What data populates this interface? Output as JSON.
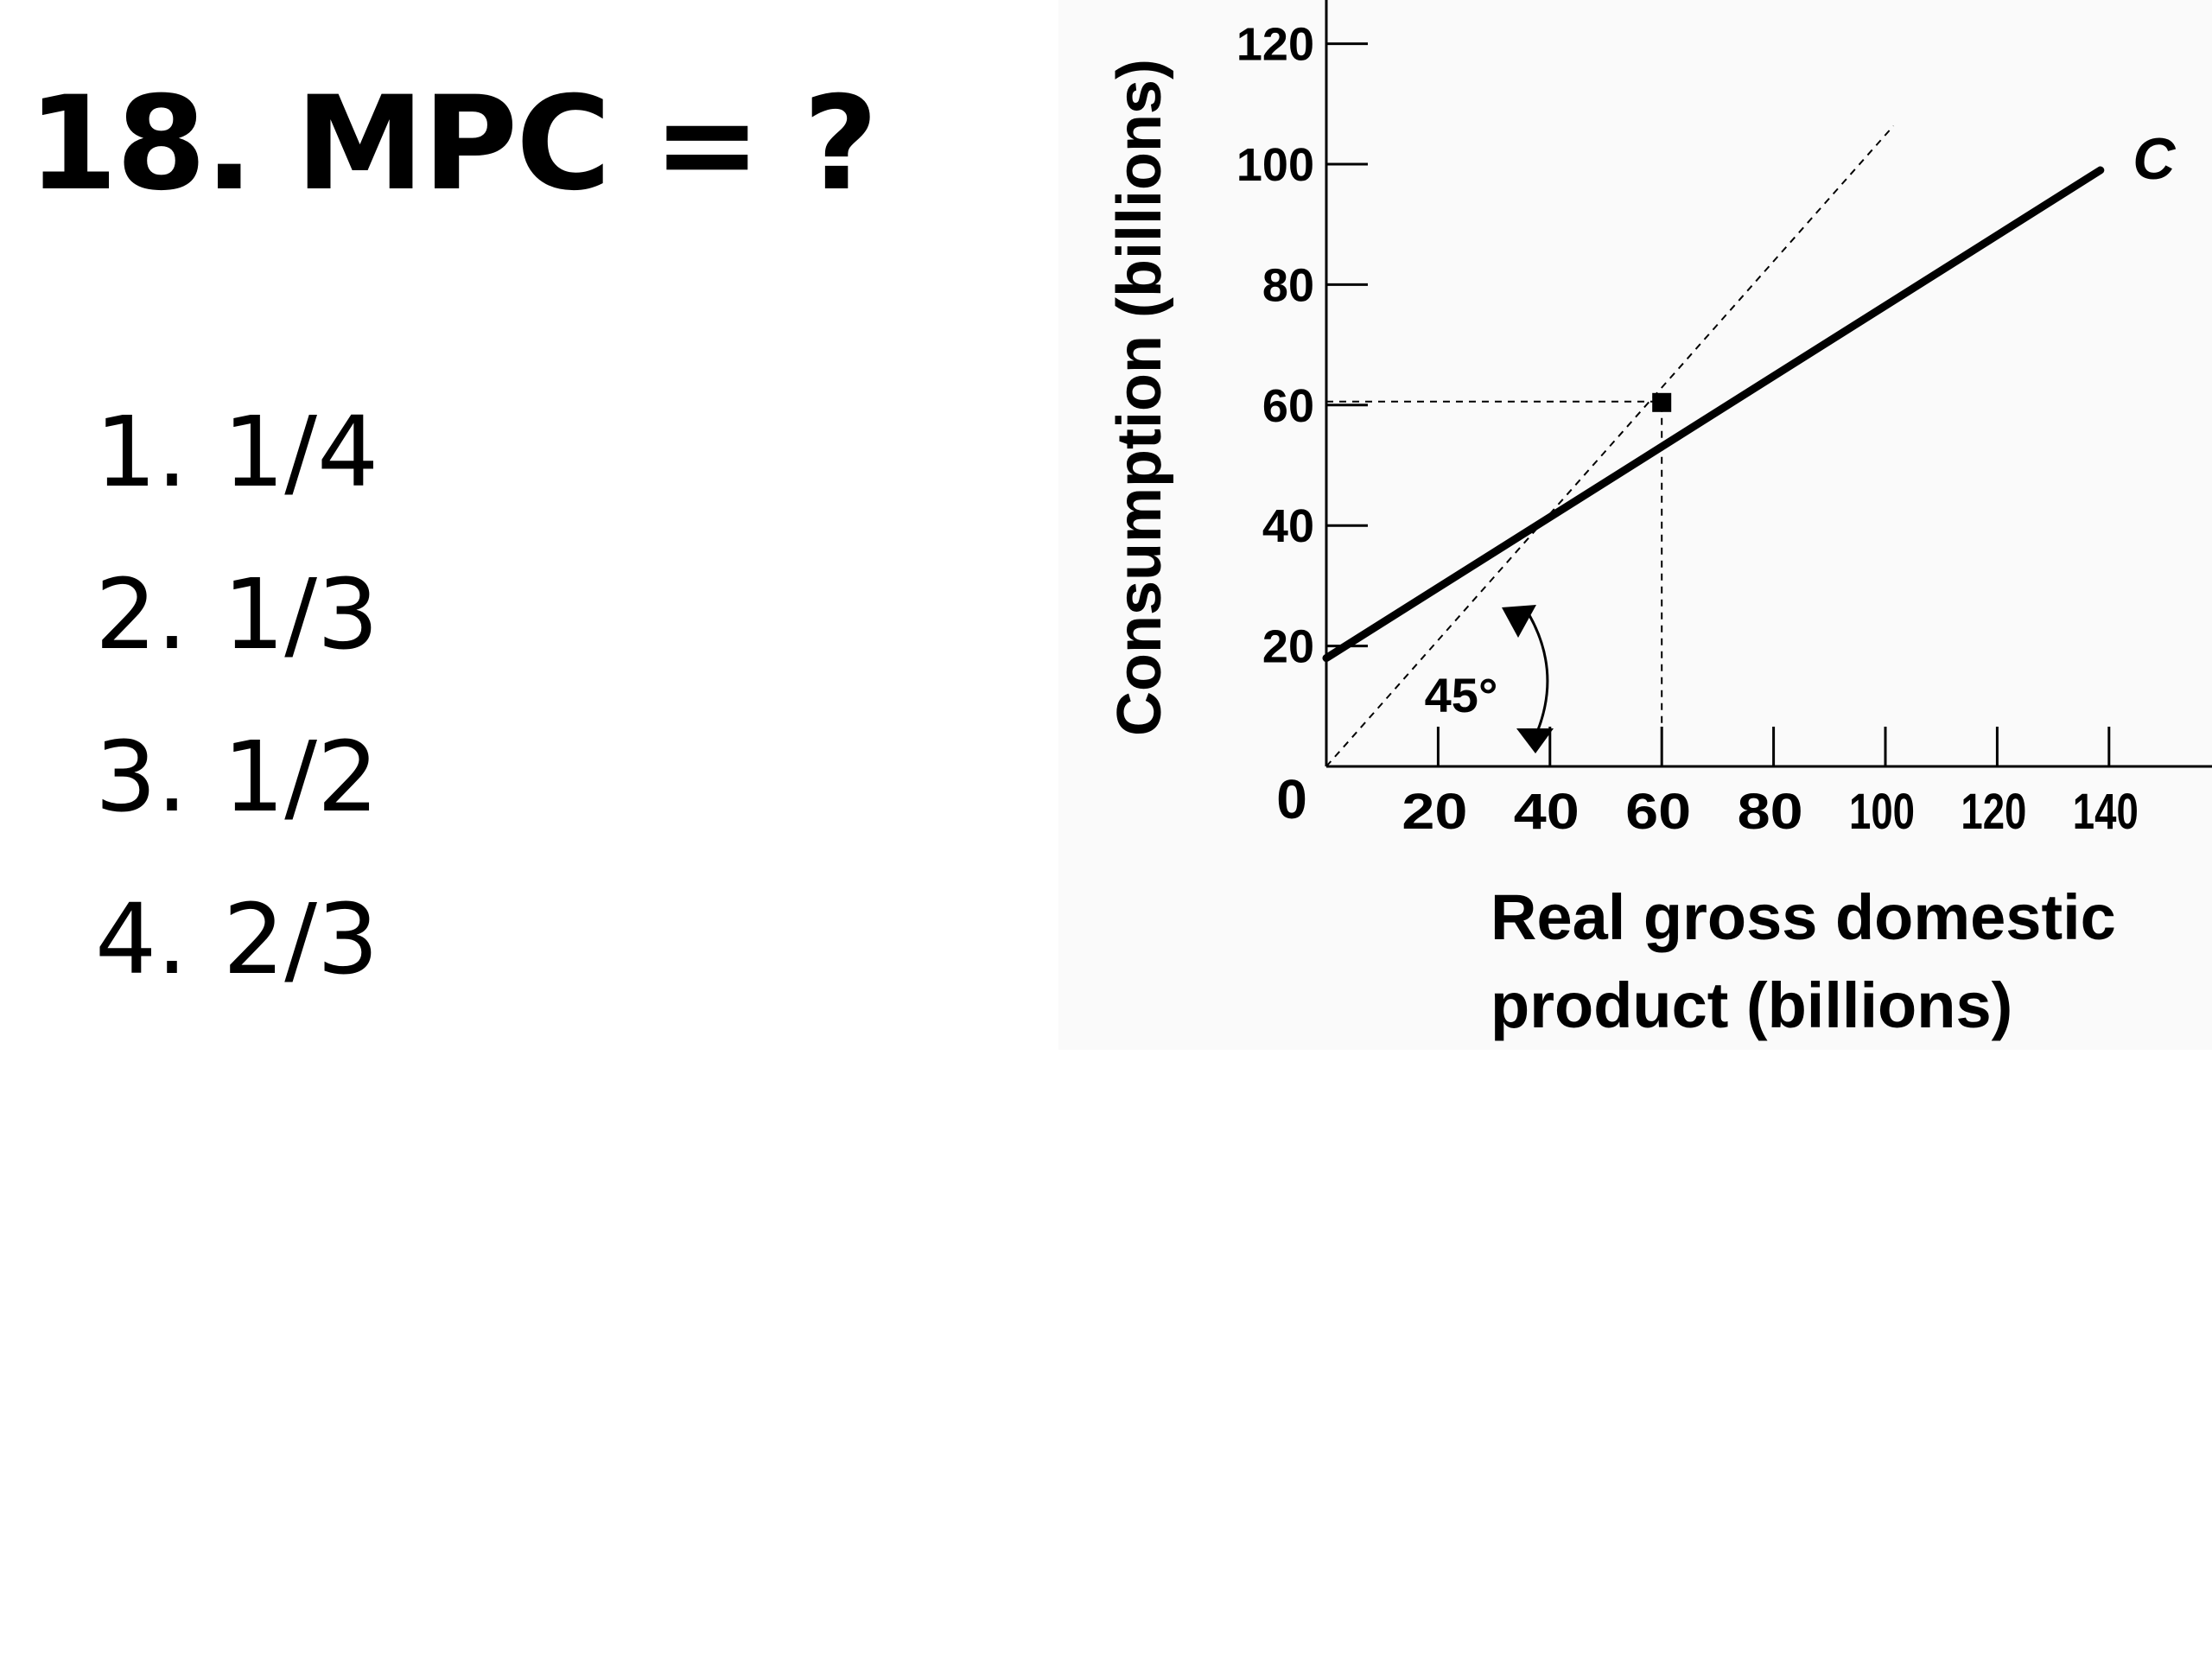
{
  "question": {
    "number": "18.",
    "text": "MPC = ?"
  },
  "choices": [
    {
      "num": "1.",
      "value": "1/4"
    },
    {
      "num": "2.",
      "value": "1/3"
    },
    {
      "num": "3.",
      "value": "1/2"
    },
    {
      "num": "4.",
      "value": "2/3"
    }
  ],
  "chart_data": {
    "type": "line",
    "xlabel_lines": [
      "Real gross domestic",
      "product (billions)"
    ],
    "ylabel": "Consumption (billions)",
    "origin_label": "0",
    "x_ticks": [
      20,
      40,
      60,
      80,
      100,
      120,
      140
    ],
    "y_ticks": [
      20,
      40,
      60,
      80,
      100,
      120
    ],
    "xlim": [
      0,
      160
    ],
    "ylim": [
      0,
      120
    ],
    "series": [
      {
        "name": "C",
        "x": [
          0,
          140
        ],
        "y": [
          20,
          100
        ],
        "style": "solid"
      }
    ],
    "reference_line": {
      "x": [
        0,
        120
      ],
      "y": [
        0,
        120
      ],
      "style": "dashed",
      "angle_label": "45°"
    },
    "highlight_point": {
      "x": 60,
      "y": 60,
      "guides": "dashed"
    },
    "grid": false,
    "legend": "none"
  }
}
